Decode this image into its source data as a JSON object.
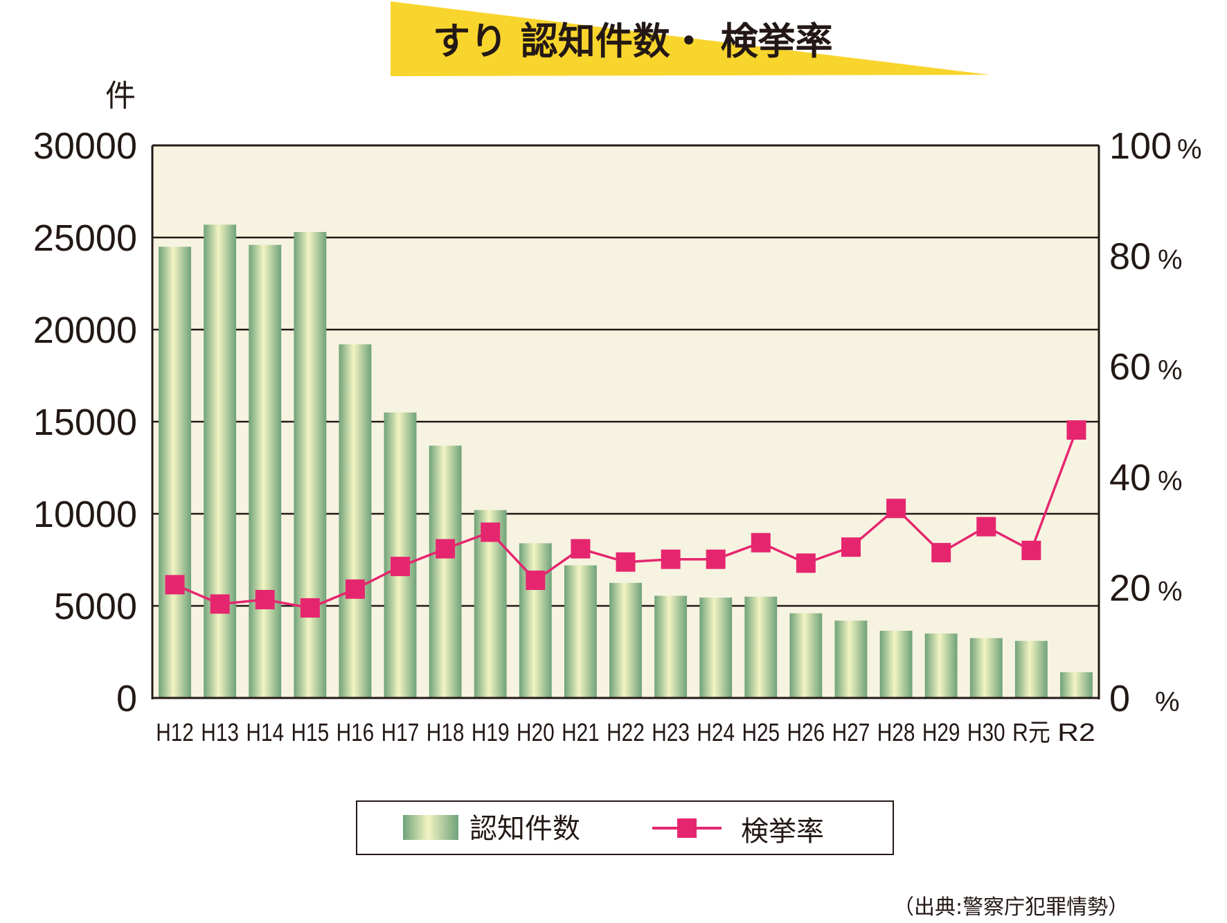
{
  "chart_data": {
    "type": "bar",
    "title": "すり 認知件数・ 検挙率",
    "ylabel_left": "件",
    "categories": [
      "H12",
      "H13",
      "H14",
      "H15",
      "H16",
      "H17",
      "H18",
      "H19",
      "H20",
      "H21",
      "H22",
      "H23",
      "H24",
      "H25",
      "H26",
      "H27",
      "H28",
      "H29",
      "H30",
      "R元",
      "R2"
    ],
    "series": [
      {
        "name": "認知件数",
        "type": "bar",
        "axis": "left",
        "values": [
          24500,
          25700,
          24600,
          25300,
          19200,
          15500,
          13700,
          10200,
          8400,
          7200,
          6250,
          5550,
          5450,
          5500,
          4600,
          4200,
          3650,
          3500,
          3250,
          3100,
          1400
        ]
      },
      {
        "name": "検挙率",
        "type": "line",
        "axis": "right",
        "values": [
          20.5,
          17.0,
          17.8,
          16.3,
          19.7,
          23.8,
          27.0,
          30.0,
          21.3,
          27.0,
          24.6,
          25.1,
          25.1,
          28.1,
          24.4,
          27.3,
          34.3,
          26.3,
          31.0,
          26.7,
          48.5
        ]
      }
    ],
    "left_axis": {
      "min": 0,
      "max": 30000,
      "ticks": [
        "0",
        "5000",
        "10000",
        "15000",
        "20000",
        "25000",
        "30000"
      ]
    },
    "right_axis": {
      "min": 0,
      "max": 100,
      "ticks": [
        "0",
        "20",
        "40",
        "60",
        "80",
        "100"
      ],
      "unit": "%"
    },
    "grid": true,
    "legend_position": "bottom-center",
    "source": "（出典:警察庁犯罪情勢）"
  },
  "colors": {
    "plot_bg": "#f7f3e1",
    "bar_edge": "#6fa27a",
    "bar_center": "#f2f4c2",
    "line": "#e5266f",
    "title_banner": "#f8d52d",
    "axis": "#231815"
  }
}
